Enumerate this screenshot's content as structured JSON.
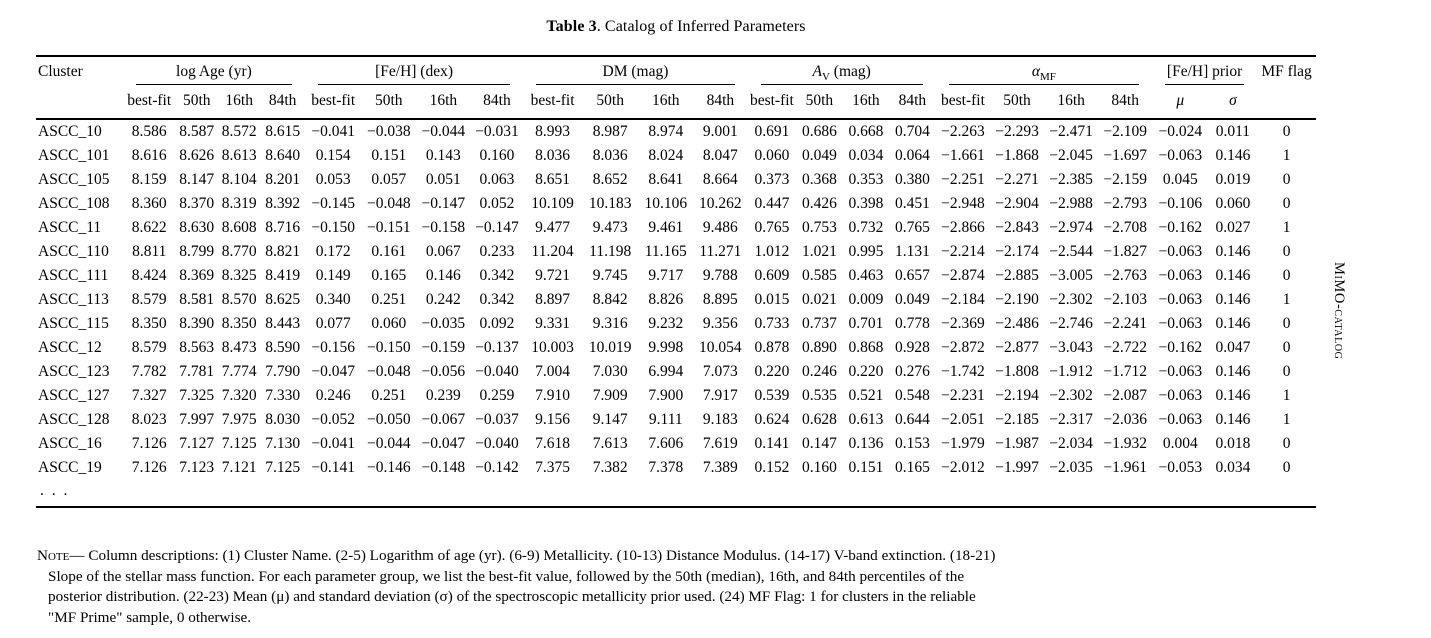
{
  "title": {
    "label": "Table 3",
    "rest": ". Catalog of Inferred Parameters"
  },
  "sidebar_text": "MiMO-catalog",
  "table": {
    "cluster_header": "Cluster",
    "mf_flag_header": "MF flag",
    "ellipsis": ". . .",
    "groups": [
      {
        "text": "log Age (yr)",
        "sub": "",
        "tail": "",
        "italic": false,
        "italic_cols": false,
        "columns": [
          "best-fit",
          "50th",
          "16th",
          "84th"
        ]
      },
      {
        "text": "[Fe/H] (dex)",
        "sub": "",
        "tail": "",
        "italic": false,
        "italic_cols": false,
        "columns": [
          "best-fit",
          "50th",
          "16th",
          "84th"
        ]
      },
      {
        "text": "DM (mag)",
        "sub": "",
        "tail": "",
        "italic": false,
        "italic_cols": false,
        "columns": [
          "best-fit",
          "50th",
          "16th",
          "84th"
        ]
      },
      {
        "text": "A",
        "sub": "V",
        "tail": " (mag)",
        "italic": true,
        "italic_cols": false,
        "columns": [
          "best-fit",
          "50th",
          "16th",
          "84th"
        ]
      },
      {
        "text": "α",
        "sub": "MF",
        "tail": "",
        "italic": true,
        "italic_cols": false,
        "columns": [
          "best-fit",
          "50th",
          "16th",
          "84th"
        ]
      },
      {
        "text": "[Fe/H] prior",
        "sub": "",
        "tail": "",
        "italic": false,
        "italic_cols": true,
        "columns": [
          "μ",
          "σ"
        ]
      }
    ],
    "rows": [
      {
        "cluster": "ASCC_10",
        "values": [
          "8.586",
          "8.587",
          "8.572",
          "8.615",
          "−0.041",
          "−0.038",
          "−0.044",
          "−0.031",
          "8.993",
          "8.987",
          "8.974",
          "9.001",
          "0.691",
          "0.686",
          "0.668",
          "0.704",
          "−2.263",
          "−2.293",
          "−2.471",
          "−2.109",
          "−0.024",
          "0.011",
          "0"
        ]
      },
      {
        "cluster": "ASCC_101",
        "values": [
          "8.616",
          "8.626",
          "8.613",
          "8.640",
          "0.154",
          "0.151",
          "0.143",
          "0.160",
          "8.036",
          "8.036",
          "8.024",
          "8.047",
          "0.060",
          "0.049",
          "0.034",
          "0.064",
          "−1.661",
          "−1.868",
          "−2.045",
          "−1.697",
          "−0.063",
          "0.146",
          "1"
        ]
      },
      {
        "cluster": "ASCC_105",
        "values": [
          "8.159",
          "8.147",
          "8.104",
          "8.201",
          "0.053",
          "0.057",
          "0.051",
          "0.063",
          "8.651",
          "8.652",
          "8.641",
          "8.664",
          "0.373",
          "0.368",
          "0.353",
          "0.380",
          "−2.251",
          "−2.271",
          "−2.385",
          "−2.159",
          "0.045",
          "0.019",
          "0"
        ]
      },
      {
        "cluster": "ASCC_108",
        "values": [
          "8.360",
          "8.370",
          "8.319",
          "8.392",
          "−0.145",
          "−0.048",
          "−0.147",
          "0.052",
          "10.109",
          "10.183",
          "10.106",
          "10.262",
          "0.447",
          "0.426",
          "0.398",
          "0.451",
          "−2.948",
          "−2.904",
          "−2.988",
          "−2.793",
          "−0.106",
          "0.060",
          "0"
        ]
      },
      {
        "cluster": "ASCC_11",
        "values": [
          "8.622",
          "8.630",
          "8.608",
          "8.716",
          "−0.150",
          "−0.151",
          "−0.158",
          "−0.147",
          "9.477",
          "9.473",
          "9.461",
          "9.486",
          "0.765",
          "0.753",
          "0.732",
          "0.765",
          "−2.866",
          "−2.843",
          "−2.974",
          "−2.708",
          "−0.162",
          "0.027",
          "1"
        ]
      },
      {
        "cluster": "ASCC_110",
        "values": [
          "8.811",
          "8.799",
          "8.770",
          "8.821",
          "0.172",
          "0.161",
          "0.067",
          "0.233",
          "11.204",
          "11.198",
          "11.165",
          "11.271",
          "1.012",
          "1.021",
          "0.995",
          "1.131",
          "−2.214",
          "−2.174",
          "−2.544",
          "−1.827",
          "−0.063",
          "0.146",
          "0"
        ]
      },
      {
        "cluster": "ASCC_111",
        "values": [
          "8.424",
          "8.369",
          "8.325",
          "8.419",
          "0.149",
          "0.165",
          "0.146",
          "0.342",
          "9.721",
          "9.745",
          "9.717",
          "9.788",
          "0.609",
          "0.585",
          "0.463",
          "0.657",
          "−2.874",
          "−2.885",
          "−3.005",
          "−2.763",
          "−0.063",
          "0.146",
          "0"
        ]
      },
      {
        "cluster": "ASCC_113",
        "values": [
          "8.579",
          "8.581",
          "8.570",
          "8.625",
          "0.340",
          "0.251",
          "0.242",
          "0.342",
          "8.897",
          "8.842",
          "8.826",
          "8.895",
          "0.015",
          "0.021",
          "0.009",
          "0.049",
          "−2.184",
          "−2.190",
          "−2.302",
          "−2.103",
          "−0.063",
          "0.146",
          "1"
        ]
      },
      {
        "cluster": "ASCC_115",
        "values": [
          "8.350",
          "8.390",
          "8.350",
          "8.443",
          "0.077",
          "0.060",
          "−0.035",
          "0.092",
          "9.331",
          "9.316",
          "9.232",
          "9.356",
          "0.733",
          "0.737",
          "0.701",
          "0.778",
          "−2.369",
          "−2.486",
          "−2.746",
          "−2.241",
          "−0.063",
          "0.146",
          "0"
        ]
      },
      {
        "cluster": "ASCC_12",
        "values": [
          "8.579",
          "8.563",
          "8.473",
          "8.590",
          "−0.156",
          "−0.150",
          "−0.159",
          "−0.137",
          "10.003",
          "10.019",
          "9.998",
          "10.054",
          "0.878",
          "0.890",
          "0.868",
          "0.928",
          "−2.872",
          "−2.877",
          "−3.043",
          "−2.722",
          "−0.162",
          "0.047",
          "0"
        ]
      },
      {
        "cluster": "ASCC_123",
        "values": [
          "7.782",
          "7.781",
          "7.774",
          "7.790",
          "−0.047",
          "−0.048",
          "−0.056",
          "−0.040",
          "7.004",
          "7.030",
          "6.994",
          "7.073",
          "0.220",
          "0.246",
          "0.220",
          "0.276",
          "−1.742",
          "−1.808",
          "−1.912",
          "−1.712",
          "−0.063",
          "0.146",
          "0"
        ]
      },
      {
        "cluster": "ASCC_127",
        "values": [
          "7.327",
          "7.325",
          "7.320",
          "7.330",
          "0.246",
          "0.251",
          "0.239",
          "0.259",
          "7.910",
          "7.909",
          "7.900",
          "7.917",
          "0.539",
          "0.535",
          "0.521",
          "0.548",
          "−2.231",
          "−2.194",
          "−2.302",
          "−2.087",
          "−0.063",
          "0.146",
          "1"
        ]
      },
      {
        "cluster": "ASCC_128",
        "values": [
          "8.023",
          "7.997",
          "7.975",
          "8.030",
          "−0.052",
          "−0.050",
          "−0.067",
          "−0.037",
          "9.156",
          "9.147",
          "9.111",
          "9.183",
          "0.624",
          "0.628",
          "0.613",
          "0.644",
          "−2.051",
          "−2.185",
          "−2.317",
          "−2.036",
          "−0.063",
          "0.146",
          "1"
        ]
      },
      {
        "cluster": "ASCC_16",
        "values": [
          "7.126",
          "7.127",
          "7.125",
          "7.130",
          "−0.041",
          "−0.044",
          "−0.047",
          "−0.040",
          "7.618",
          "7.613",
          "7.606",
          "7.619",
          "0.141",
          "0.147",
          "0.136",
          "0.153",
          "−1.979",
          "−1.987",
          "−2.034",
          "−1.932",
          "0.004",
          "0.018",
          "0"
        ]
      },
      {
        "cluster": "ASCC_19",
        "values": [
          "7.126",
          "7.123",
          "7.121",
          "7.125",
          "−0.141",
          "−0.146",
          "−0.148",
          "−0.142",
          "7.375",
          "7.382",
          "7.378",
          "7.389",
          "0.152",
          "0.160",
          "0.151",
          "0.165",
          "−2.012",
          "−1.997",
          "−2.035",
          "−1.961",
          "−0.053",
          "0.034",
          "0"
        ]
      }
    ]
  },
  "note": {
    "label": "Note",
    "body": "— Column descriptions:  (1) Cluster Name.  (2-5) Logarithm of age (yr).  (6-9) Metallicity.  (10-13) Distance Modulus.  (14-17) V-band extinction.  (18-21) Slope of the stellar mass function.  For each parameter group, we list the best-fit value, followed by the 50th (median), 16th, and 84th percentiles of the posterior distribution.  (22-23) Mean (μ) and standard deviation (σ) of the spectroscopic metallicity prior used.  (24) MF Flag: 1 for clusters in the reliable \"MF Prime\" sample, 0 otherwise."
  }
}
